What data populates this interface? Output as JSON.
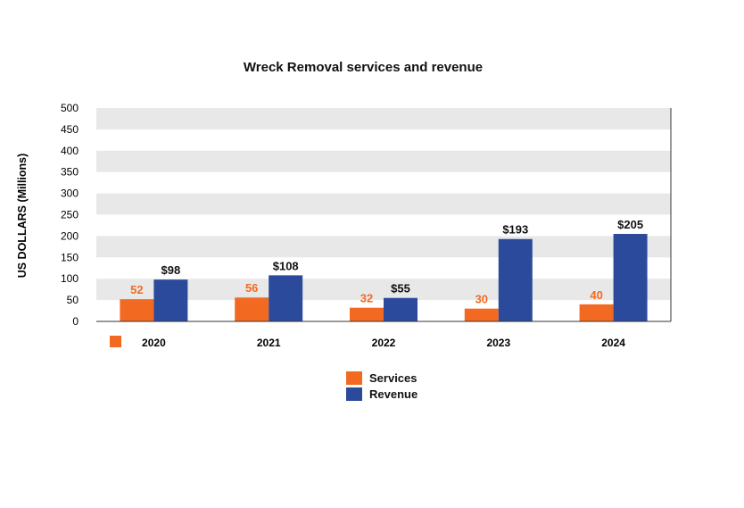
{
  "chart_data": {
    "type": "bar",
    "title": "Wreck Removal services and revenue",
    "ylabel": "US DOLLARS (Millions)",
    "xlabel": "",
    "ylim": [
      0,
      500
    ],
    "yticks": [
      0,
      50,
      100,
      150,
      200,
      250,
      300,
      350,
      400,
      450,
      500
    ],
    "categories": [
      "2020",
      "2021",
      "2022",
      "2023",
      "2024"
    ],
    "series": [
      {
        "name": "Services",
        "color": "#f26a21",
        "values": [
          52,
          56,
          32,
          30,
          40
        ],
        "labels": [
          "52",
          "56",
          "32",
          "30",
          "40"
        ]
      },
      {
        "name": "Revenue",
        "color": "#2b4a9b",
        "values": [
          98,
          108,
          55,
          193,
          205
        ],
        "labels": [
          "$98",
          "$108",
          "$55",
          "$193",
          "$205"
        ]
      }
    ],
    "grid": "alternating horizontal bands",
    "legend_placement": "bottom-center"
  }
}
